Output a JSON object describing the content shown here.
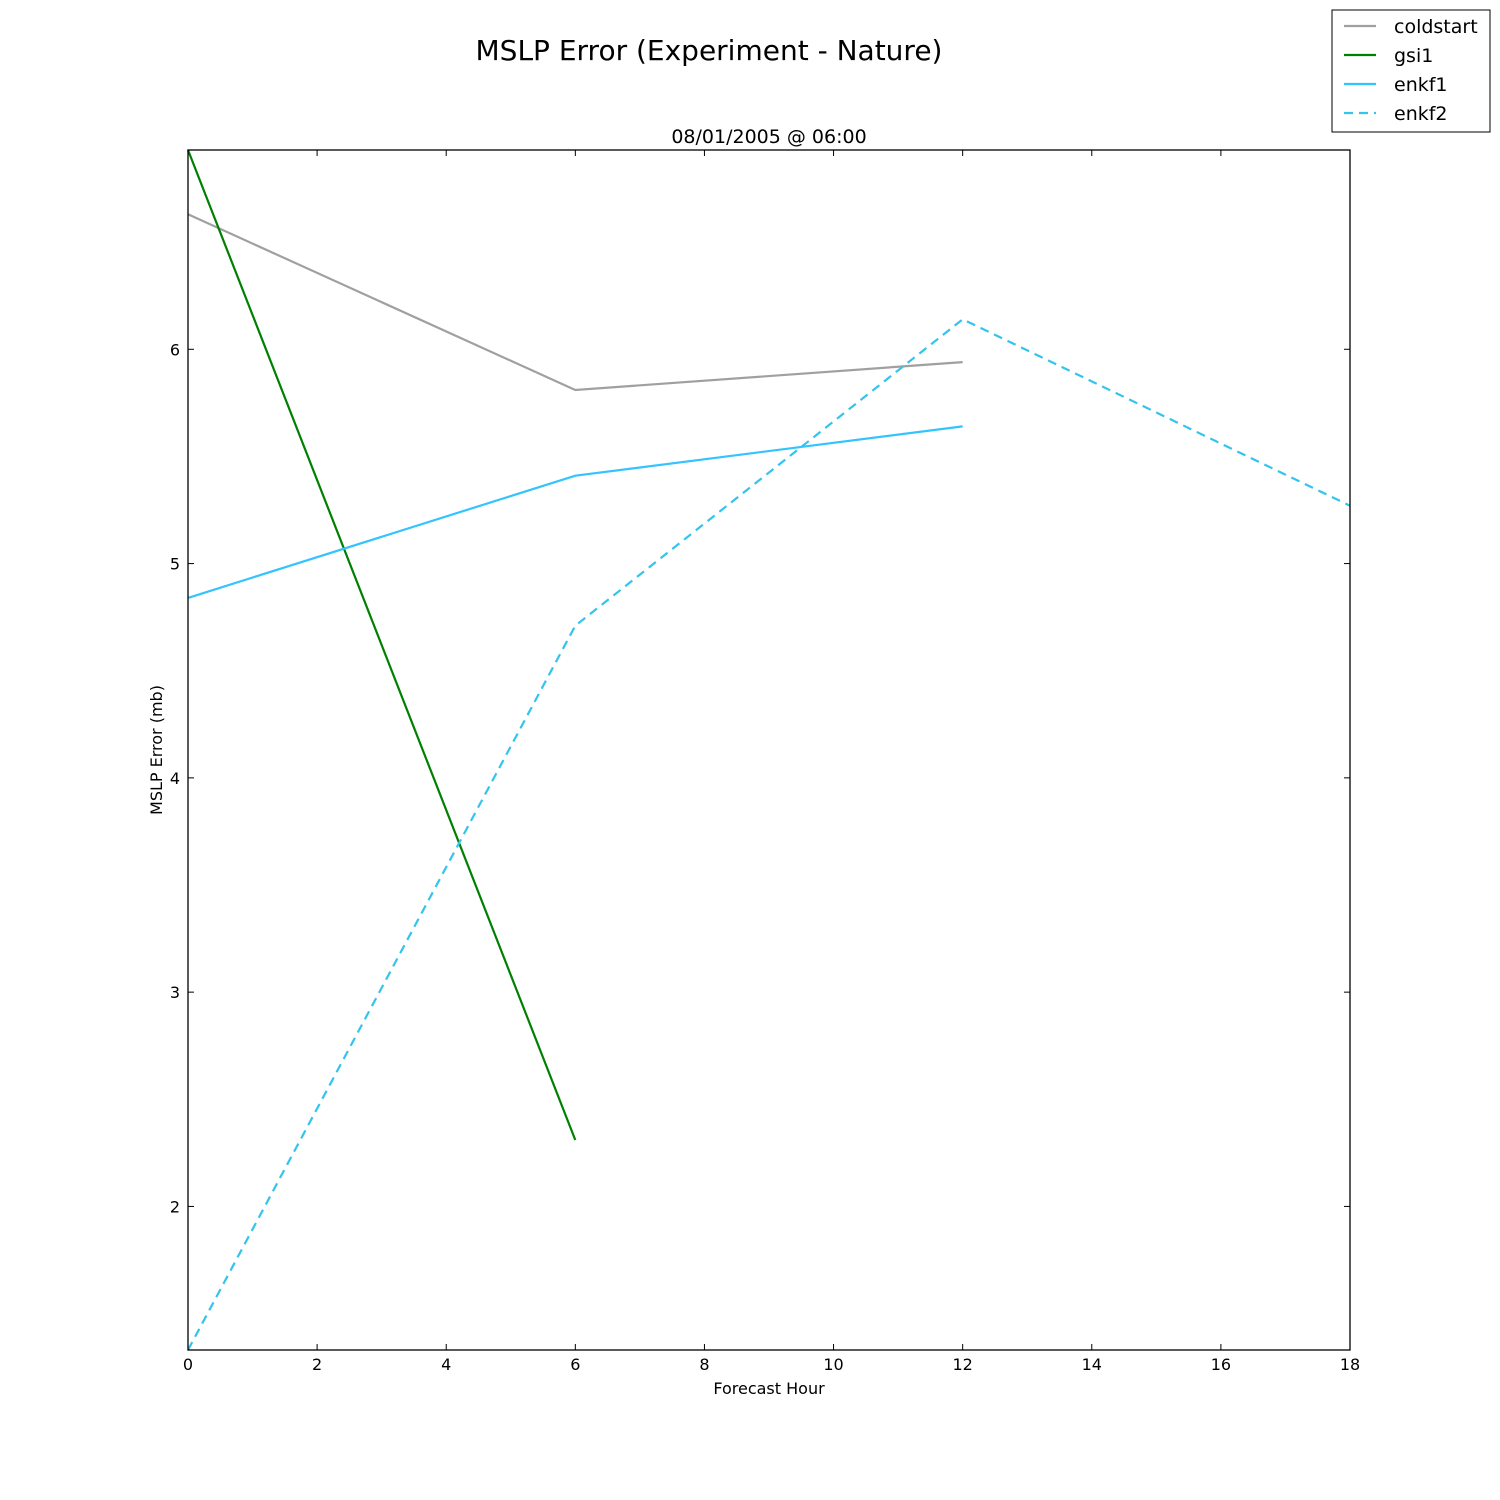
{
  "chart_data": {
    "type": "line",
    "title": "MSLP Error  (Experiment - Nature)",
    "subtitle": "08/01/2005 @ 06:00",
    "xlabel": "Forecast Hour",
    "ylabel": "MSLP Error (mb)",
    "xlim": [
      0,
      18
    ],
    "ylim": [
      1.33,
      6.93
    ],
    "xticks": [
      0,
      2,
      4,
      6,
      8,
      10,
      12,
      14,
      16,
      18
    ],
    "yticks": [
      2,
      3,
      4,
      5,
      6
    ],
    "grid": false,
    "legend_position": "top-right",
    "series": [
      {
        "name": "coldstart",
        "color": "#a0a0a0",
        "dash": "solid",
        "x": [
          0,
          6,
          12
        ],
        "y": [
          6.63,
          5.81,
          5.94
        ]
      },
      {
        "name": "gsi1",
        "color": "#008000",
        "dash": "solid",
        "x": [
          0,
          6
        ],
        "y": [
          6.93,
          2.31
        ]
      },
      {
        "name": "enkf1",
        "color": "#33c4ff",
        "dash": "solid",
        "x": [
          0,
          6,
          12
        ],
        "y": [
          4.84,
          5.41,
          5.64
        ]
      },
      {
        "name": "enkf2",
        "color": "#33c4ee",
        "dash": "dashed",
        "x": [
          0,
          6,
          12,
          18
        ],
        "y": [
          1.33,
          4.71,
          6.14,
          5.27
        ]
      }
    ]
  }
}
